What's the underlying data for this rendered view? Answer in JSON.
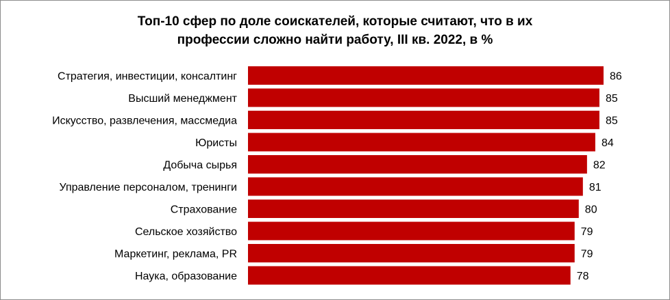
{
  "chart_data": {
    "type": "bar",
    "orientation": "horizontal",
    "title_lines": [
      "Топ-10 сфер по доле соискателей, которые считают, что в их",
      "профессии сложно найти работу, III кв. 2022, в %"
    ],
    "categories": [
      "Стратегия, инвестиции, консалтинг",
      "Высший менеджмент",
      "Искусство, развлечения, массмедиа",
      "Юристы",
      "Добыча сырья",
      "Управление персоналом, тренинги",
      "Страхование",
      "Сельское хозяйство",
      "Маркетинг, реклама, PR",
      "Наука, образование"
    ],
    "values": [
      86,
      85,
      85,
      84,
      82,
      81,
      80,
      79,
      79,
      78
    ],
    "value_labels": [
      "86",
      "85",
      "85",
      "84",
      "82",
      "81",
      "80",
      "79",
      "79",
      "78"
    ],
    "bar_color": "#c00000",
    "legend": "none",
    "grid": false
  }
}
